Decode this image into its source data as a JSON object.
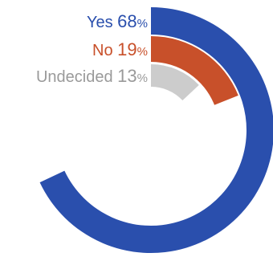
{
  "chart_data": {
    "type": "radial-bar",
    "title": "",
    "unit": "%",
    "series": [
      {
        "name": "Yes",
        "value": 68,
        "color": "#2a4fad",
        "label_color": "#2a4fad"
      },
      {
        "name": "No",
        "value": 19,
        "color": "#c8502a",
        "label_color": "#c8502a"
      },
      {
        "name": "Undecided",
        "value": 13,
        "color": "#cccccc",
        "label_color": "#9a9a9a"
      }
    ],
    "max": 100,
    "start": "top",
    "direction": "clockwise",
    "legend": "top-left, aligned with each ring's start"
  }
}
